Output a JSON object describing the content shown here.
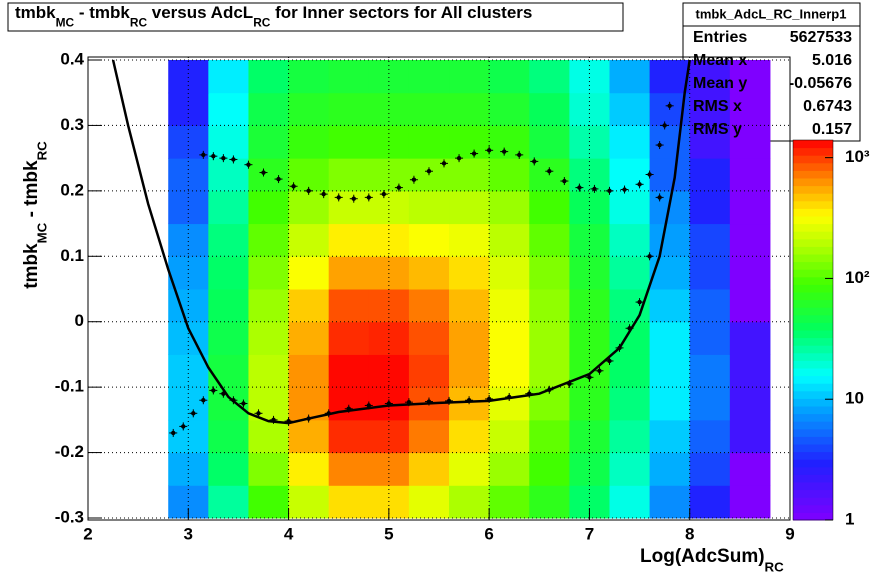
{
  "chart_data": {
    "type": "heatmap",
    "title": [
      "tmbk",
      "MC",
      " - tmbk",
      "RC",
      " versus AdcL",
      "RC",
      " for Inner sectors for All clusters"
    ],
    "xlabel": [
      "Log(AdcSum)",
      "RC"
    ],
    "ylabel": [
      "tmbk",
      "MC",
      " - tmbk",
      "RC"
    ],
    "xlim": [
      2,
      9
    ],
    "ylim": [
      -0.3,
      0.4
    ],
    "xticks": [
      2,
      3,
      4,
      5,
      6,
      7,
      8,
      9
    ],
    "yticks": [
      -0.3,
      -0.2,
      -0.1,
      0,
      0.1,
      0.2,
      0.3,
      0.4
    ],
    "grid": true,
    "zlim": [
      1,
      1400
    ],
    "zlog": true,
    "zticks": [
      1,
      10,
      {
        "value": 100,
        "label": "10²"
      },
      {
        "value": 1000,
        "label": "10³"
      }
    ],
    "xbins": [
      2.8,
      3.2,
      3.6,
      4.0,
      4.4,
      4.8,
      5.2,
      5.6,
      6.0,
      6.4,
      6.8,
      7.2,
      7.6,
      8.0,
      8.4,
      8.8
    ],
    "ybins": [
      -0.3,
      -0.25,
      -0.2,
      -0.15,
      -0.1,
      -0.05,
      0,
      0.05,
      0.1,
      0.15,
      0.2,
      0.25,
      0.3,
      0.35,
      0.4
    ],
    "z": [
      [
        7,
        27,
        90,
        220,
        400,
        400,
        270,
        180,
        110,
        70,
        36,
        18,
        7,
        3,
        1
      ],
      [
        9,
        36,
        135,
        360,
        680,
        680,
        450,
        270,
        160,
        90,
        45,
        22,
        9,
        4,
        1
      ],
      [
        11,
        45,
        180,
        540,
        1100,
        1100,
        720,
        400,
        220,
        110,
        55,
        27,
        11,
        5,
        2
      ],
      [
        11,
        50,
        200,
        630,
        1350,
        1350,
        900,
        500,
        270,
        135,
        68,
        32,
        14,
        6,
        2
      ],
      [
        11,
        50,
        200,
        630,
        1350,
        1350,
        1000,
        580,
        320,
        160,
        72,
        36,
        14,
        6,
        2
      ],
      [
        10,
        45,
        180,
        540,
        1100,
        1150,
        900,
        580,
        320,
        160,
        72,
        36,
        14,
        5,
        2
      ],
      [
        9,
        40,
        160,
        450,
        900,
        900,
        720,
        500,
        290,
        150,
        68,
        32,
        11,
        5,
        1
      ],
      [
        8,
        36,
        135,
        320,
        580,
        580,
        500,
        400,
        250,
        135,
        58,
        27,
        9,
        4,
        1
      ],
      [
        7,
        32,
        110,
        220,
        360,
        360,
        320,
        290,
        200,
        110,
        50,
        22,
        8,
        4,
        1
      ],
      [
        5,
        27,
        90,
        160,
        220,
        220,
        200,
        200,
        160,
        90,
        40,
        18,
        7,
        3,
        1
      ],
      [
        5,
        22,
        68,
        110,
        135,
        135,
        135,
        135,
        110,
        68,
        32,
        16,
        5,
        3,
        1
      ],
      [
        4,
        18,
        54,
        80,
        90,
        90,
        90,
        90,
        80,
        50,
        25,
        14,
        5,
        2,
        1
      ],
      [
        3,
        16,
        45,
        63,
        68,
        68,
        68,
        68,
        58,
        40,
        20,
        11,
        4,
        2,
        1
      ],
      [
        3,
        14,
        36,
        50,
        54,
        54,
        54,
        54,
        45,
        32,
        18,
        9,
        3,
        2,
        1
      ]
    ],
    "points": [
      {
        "color": "#000000",
        "x": [
          3.15,
          3.25,
          3.35,
          3.45,
          3.6,
          3.75,
          3.9,
          4.05,
          4.2,
          4.35,
          4.5,
          4.65,
          4.8,
          4.95,
          5.1,
          5.25,
          5.4,
          5.55,
          5.7,
          5.85,
          6.0,
          6.15,
          6.3,
          6.45,
          6.6,
          6.75,
          6.9,
          7.05,
          7.2,
          7.35,
          7.5,
          7.6,
          7.7,
          7.75,
          7.8
        ],
        "values": [
          0.255,
          0.253,
          0.25,
          0.248,
          0.24,
          0.228,
          0.218,
          0.207,
          0.2,
          0.195,
          0.19,
          0.188,
          0.19,
          0.195,
          0.205,
          0.217,
          0.23,
          0.242,
          0.25,
          0.257,
          0.262,
          0.26,
          0.255,
          0.245,
          0.23,
          0.215,
          0.205,
          0.203,
          0.2,
          0.202,
          0.21,
          0.225,
          0.27,
          0.3,
          0.33
        ]
      },
      {
        "color": "#000000",
        "x": [
          2.85,
          2.95,
          3.05,
          3.15,
          3.25,
          3.35,
          3.45,
          3.55,
          3.7,
          3.85,
          4.0,
          4.2,
          4.4,
          4.6,
          4.8,
          5.0,
          5.2,
          5.4,
          5.6,
          5.8,
          6.0,
          6.2,
          6.4,
          6.6,
          6.8,
          7.0,
          7.1,
          7.2,
          7.3,
          7.4,
          7.5,
          7.6,
          7.7
        ],
        "values": [
          -0.17,
          -0.16,
          -0.14,
          -0.12,
          -0.105,
          -0.11,
          -0.12,
          -0.125,
          -0.14,
          -0.15,
          -0.152,
          -0.148,
          -0.14,
          -0.133,
          -0.128,
          -0.125,
          -0.123,
          -0.122,
          -0.121,
          -0.12,
          -0.118,
          -0.115,
          -0.11,
          -0.104,
          -0.095,
          -0.085,
          -0.075,
          -0.06,
          -0.04,
          -0.01,
          0.03,
          0.1,
          0.19
        ]
      }
    ],
    "fit": {
      "color": "#000000",
      "x": [
        2.25,
        2.4,
        2.6,
        2.8,
        3.0,
        3.2,
        3.4,
        3.6,
        3.8,
        4.0,
        4.2,
        4.5,
        5.0,
        5.5,
        6.0,
        6.5,
        7.0,
        7.3,
        7.5,
        7.7,
        7.85,
        7.95,
        8.0
      ],
      "values": [
        0.4,
        0.3,
        0.18,
        0.08,
        -0.01,
        -0.07,
        -0.115,
        -0.14,
        -0.152,
        -0.155,
        -0.148,
        -0.138,
        -0.128,
        -0.124,
        -0.121,
        -0.11,
        -0.08,
        -0.04,
        0.01,
        0.1,
        0.22,
        0.35,
        0.4
      ]
    },
    "stats": {
      "title": "tmbk_AdcL_RC_Innerp1",
      "rows": [
        [
          "Entries",
          5627533
        ],
        [
          "Mean x",
          5.016
        ],
        [
          "Mean y",
          -0.05676
        ],
        [
          "RMS x",
          0.6743
        ],
        [
          "RMS y",
          0.157
        ]
      ]
    }
  }
}
